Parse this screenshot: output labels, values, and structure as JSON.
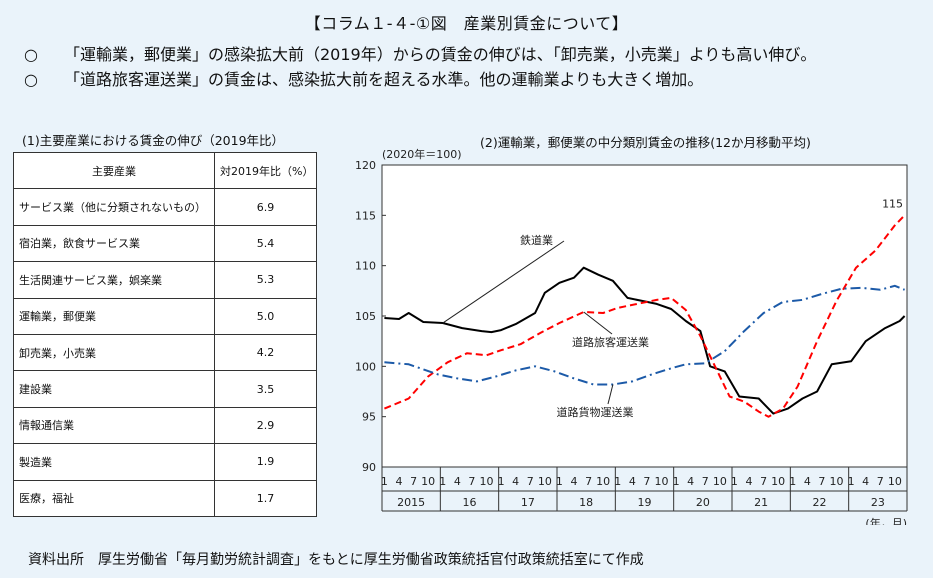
{
  "header": {
    "title": "【コラム１-４-①図　産業別賃金について】",
    "bullets": [
      {
        "mark": "○",
        "text": "「運輸業，郵便業」の感染拡大前（2019年）からの賃金の伸びは、「卸売業，小売業」よりも高い伸び。"
      },
      {
        "mark": "○",
        "text": "「道路旅客運送業」の賃金は、感染拡大前を超える水準。他の運輸業よりも大きく増加。"
      }
    ]
  },
  "table_panel": {
    "subtitle": "(1)主要産業における賃金の伸び（2019年比）",
    "col_industry": "主要産業",
    "col_value": "対2019年比（%）",
    "rows": [
      {
        "name": "サービス業（他に分類されないもの）",
        "value": "6.9"
      },
      {
        "name": "宿泊業，飲食サービス業",
        "value": "5.4"
      },
      {
        "name": "生活関連サービス業，娯楽業",
        "value": "5.3"
      },
      {
        "name": "運輸業，郵便業",
        "value": "5.0"
      },
      {
        "name": "卸売業，小売業",
        "value": "4.2"
      },
      {
        "name": "建設業",
        "value": "3.5"
      },
      {
        "name": "情報通信業",
        "value": "2.9"
      },
      {
        "name": "製造業",
        "value": "1.9"
      },
      {
        "name": "医療，福祉",
        "value": "1.7"
      }
    ]
  },
  "source": "資料出所　厚生労働省「毎月勤労統計調査」をもとに厚生労働省政策統括官付政策統括室にて作成",
  "chart_data": {
    "type": "line",
    "title": "(2)運輸業，郵便業の中分類別賃金の推移(12か月移動平均)",
    "ylabel": "(2020年＝100)",
    "xunit": "(年，月)",
    "ylim": [
      90,
      120
    ],
    "yticks": [
      90,
      95,
      100,
      105,
      110,
      115,
      120
    ],
    "month_ticks": [
      "1",
      "4",
      "7",
      "10"
    ],
    "years": [
      "2015",
      "16",
      "17",
      "18",
      "19",
      "20",
      "21",
      "22",
      "23"
    ],
    "x_start": "2015-01",
    "x_end": "2023-12",
    "end_label": "115",
    "series": [
      {
        "name": "鉄道業",
        "color": "#000000",
        "style": "solid",
        "points": [
          [
            "2015-01",
            104.8
          ],
          [
            "2015-04",
            104.7
          ],
          [
            "2015-06",
            105.3
          ],
          [
            "2015-09",
            104.4
          ],
          [
            "2016-01",
            104.3
          ],
          [
            "2016-05",
            103.8
          ],
          [
            "2016-09",
            103.5
          ],
          [
            "2016-11",
            103.4
          ],
          [
            "2017-01",
            103.6
          ],
          [
            "2017-04",
            104.2
          ],
          [
            "2017-08",
            105.3
          ],
          [
            "2017-10",
            107.3
          ],
          [
            "2018-01",
            108.3
          ],
          [
            "2018-04",
            108.8
          ],
          [
            "2018-06",
            109.8
          ],
          [
            "2018-09",
            109.1
          ],
          [
            "2018-12",
            108.5
          ],
          [
            "2019-03",
            106.8
          ],
          [
            "2019-06",
            106.5
          ],
          [
            "2019-09",
            106.2
          ],
          [
            "2019-12",
            105.7
          ],
          [
            "2020-03",
            104.5
          ],
          [
            "2020-06",
            103.5
          ],
          [
            "2020-08",
            100.0
          ],
          [
            "2020-11",
            99.5
          ],
          [
            "2021-02",
            97.0
          ],
          [
            "2021-06",
            96.8
          ],
          [
            "2021-09",
            95.3
          ],
          [
            "2021-12",
            95.8
          ],
          [
            "2022-03",
            96.8
          ],
          [
            "2022-06",
            97.5
          ],
          [
            "2022-09",
            100.2
          ],
          [
            "2023-01",
            100.5
          ],
          [
            "2023-04",
            102.5
          ],
          [
            "2023-08",
            103.8
          ],
          [
            "2023-11",
            104.5
          ],
          [
            "2023-12",
            105.0
          ]
        ]
      },
      {
        "name": "道路旅客運送業",
        "color": "#ff0000",
        "style": "dashed",
        "points": [
          [
            "2015-01",
            95.8
          ],
          [
            "2015-06",
            96.8
          ],
          [
            "2015-10",
            99.0
          ],
          [
            "2016-02",
            100.4
          ],
          [
            "2016-06",
            101.3
          ],
          [
            "2016-10",
            101.1
          ],
          [
            "2017-01",
            101.6
          ],
          [
            "2017-05",
            102.2
          ],
          [
            "2017-09",
            103.3
          ],
          [
            "2018-01",
            104.3
          ],
          [
            "2018-06",
            105.4
          ],
          [
            "2018-10",
            105.3
          ],
          [
            "2019-01",
            105.8
          ],
          [
            "2019-05",
            106.2
          ],
          [
            "2019-09",
            106.6
          ],
          [
            "2019-12",
            106.8
          ],
          [
            "2020-03",
            105.6
          ],
          [
            "2020-06",
            103.0
          ],
          [
            "2020-09",
            100.0
          ],
          [
            "2020-12",
            97.0
          ],
          [
            "2021-03",
            96.5
          ],
          [
            "2021-06",
            95.5
          ],
          [
            "2021-08",
            95.0
          ],
          [
            "2021-11",
            95.8
          ],
          [
            "2022-02",
            98.0
          ],
          [
            "2022-06",
            102.5
          ],
          [
            "2022-10",
            106.5
          ],
          [
            "2023-02",
            109.8
          ],
          [
            "2023-06",
            111.5
          ],
          [
            "2023-10",
            114.0
          ],
          [
            "2023-12",
            115.0
          ]
        ]
      },
      {
        "name": "道路貨物運送業",
        "color": "#1c5aa8",
        "style": "dashdot",
        "points": [
          [
            "2015-01",
            100.4
          ],
          [
            "2015-06",
            100.2
          ],
          [
            "2015-12",
            99.2
          ],
          [
            "2016-04",
            98.8
          ],
          [
            "2016-08",
            98.5
          ],
          [
            "2016-12",
            99.0
          ],
          [
            "2017-04",
            99.6
          ],
          [
            "2017-08",
            100.0
          ],
          [
            "2017-12",
            99.5
          ],
          [
            "2018-04",
            98.8
          ],
          [
            "2018-08",
            98.2
          ],
          [
            "2018-12",
            98.2
          ],
          [
            "2019-04",
            98.5
          ],
          [
            "2019-08",
            99.2
          ],
          [
            "2019-12",
            99.8
          ],
          [
            "2020-03",
            100.2
          ],
          [
            "2020-07",
            100.3
          ],
          [
            "2020-11",
            101.5
          ],
          [
            "2021-03",
            103.5
          ],
          [
            "2021-07",
            105.3
          ],
          [
            "2021-11",
            106.4
          ],
          [
            "2022-03",
            106.6
          ],
          [
            "2022-07",
            107.2
          ],
          [
            "2022-11",
            107.7
          ],
          [
            "2023-03",
            107.8
          ],
          [
            "2023-07",
            107.6
          ],
          [
            "2023-10",
            108.0
          ],
          [
            "2023-12",
            107.6
          ]
        ]
      }
    ]
  }
}
